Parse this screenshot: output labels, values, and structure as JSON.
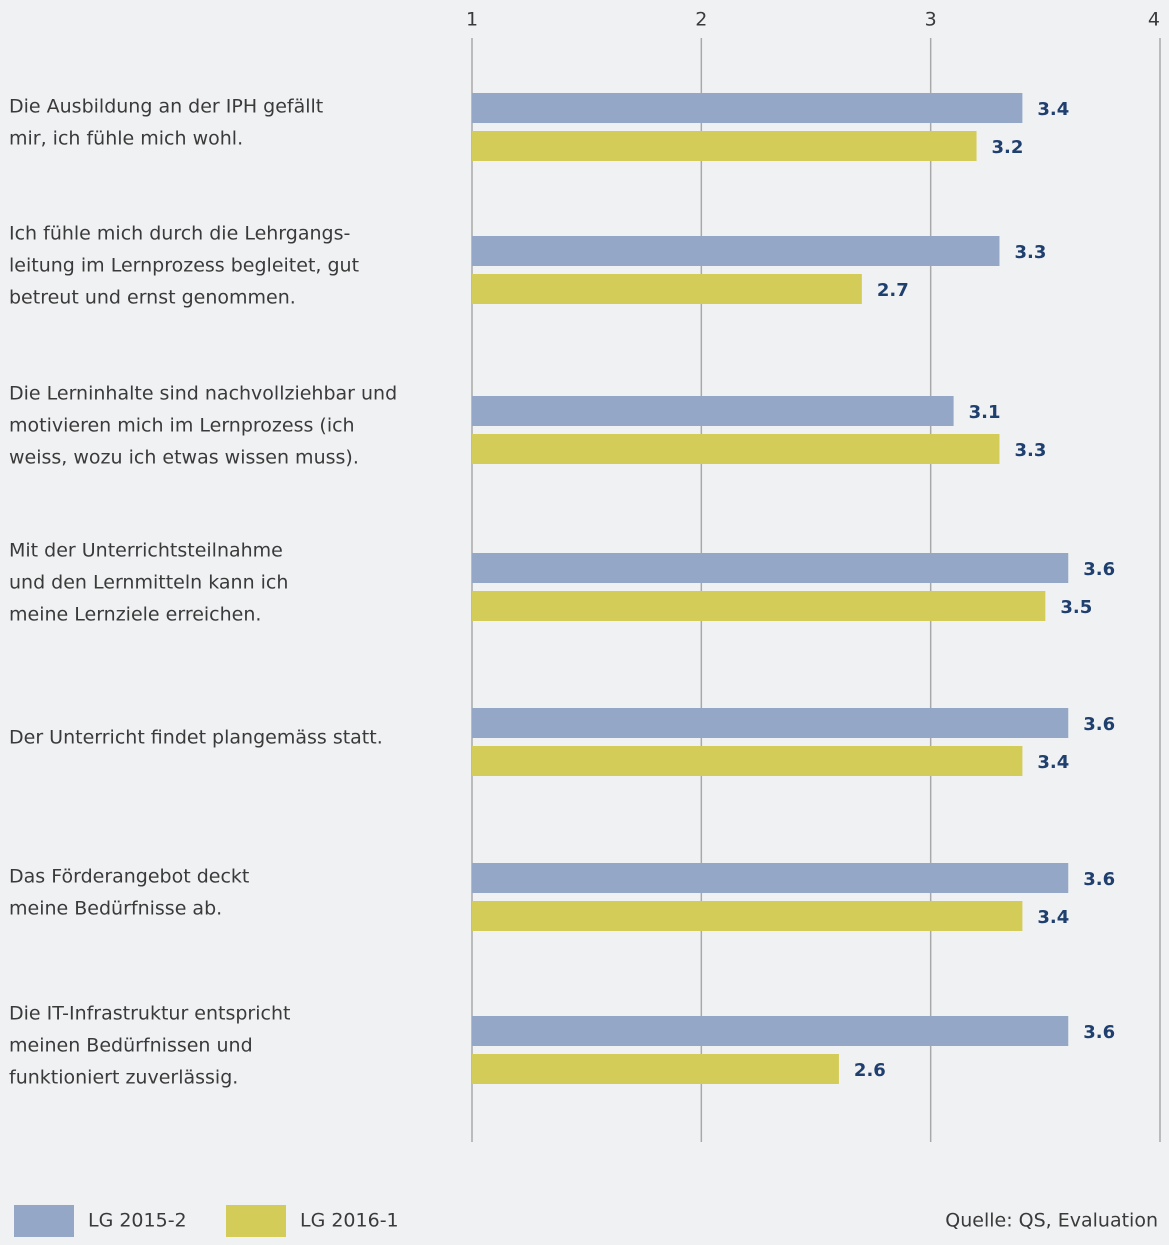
{
  "chart_data": {
    "type": "hbar",
    "categories": [
      [
        "Die Ausbildung an der IPH gefällt",
        "mir, ich fühle mich wohl."
      ],
      [
        "Ich fühle mich durch die Lehrgangs-",
        "leitung im Lernprozess begleitet, gut",
        "betreut und ernst genommen."
      ],
      [
        "Die Lerninhalte sind nachvollziehbar und",
        "motivieren mich im Lernprozess (ich",
        "weiss, wozu ich etwas wissen muss)."
      ],
      [
        "Mit der Unterrichtsteilnahme",
        "und den Lernmitteln kann ich",
        "meine Lernziele erreichen."
      ],
      [
        "Der Unterricht findet plangemäss statt."
      ],
      [
        "Das Förderangebot deckt",
        "meine Bedürfnisse ab."
      ],
      [
        "Die IT-Infrastruktur entspricht",
        "meinen Bedürfnissen und",
        "funktioniert zuverlässig."
      ]
    ],
    "series": [
      {
        "name": "LG 2015-2",
        "color": "#94a7c6",
        "values": [
          3.4,
          3.3,
          3.1,
          3.6,
          3.6,
          3.6,
          3.6
        ]
      },
      {
        "name": "LG 2016-1",
        "color": "#d4cc58",
        "values": [
          3.2,
          2.7,
          3.3,
          3.5,
          3.4,
          3.4,
          2.6
        ]
      }
    ],
    "xlim": [
      1,
      4
    ],
    "xticks": [
      1,
      2,
      3,
      4
    ],
    "grid": true,
    "source": "Quelle: QS, Evaluation"
  }
}
